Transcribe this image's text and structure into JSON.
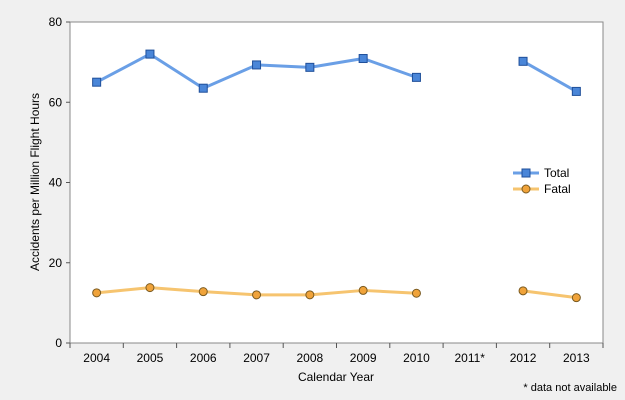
{
  "chart_data": {
    "type": "line",
    "xlabel": "Calendar Year",
    "ylabel": "Accidents per Million Flight Hours",
    "categories": [
      "2004",
      "2005",
      "2006",
      "2007",
      "2008",
      "2009",
      "2010",
      "2011*",
      "2012",
      "2013"
    ],
    "ylim": [
      0,
      80
    ],
    "yticks": [
      0,
      20,
      40,
      60,
      80
    ],
    "grid": false,
    "legend_position": "right",
    "footnote": "* data not available",
    "series": [
      {
        "name": "Total",
        "color": "#6a9fe6",
        "marker_fill": "#4a86d8",
        "marker": "square",
        "values": [
          65.0,
          72.0,
          63.5,
          69.3,
          68.7,
          70.9,
          66.2,
          null,
          70.2,
          62.7
        ]
      },
      {
        "name": "Fatal",
        "color": "#f6c46f",
        "marker_fill": "#f0a33a",
        "marker": "circle",
        "values": [
          12.5,
          13.8,
          12.8,
          12.0,
          12.0,
          13.1,
          12.4,
          null,
          13.0,
          11.3
        ]
      }
    ]
  }
}
